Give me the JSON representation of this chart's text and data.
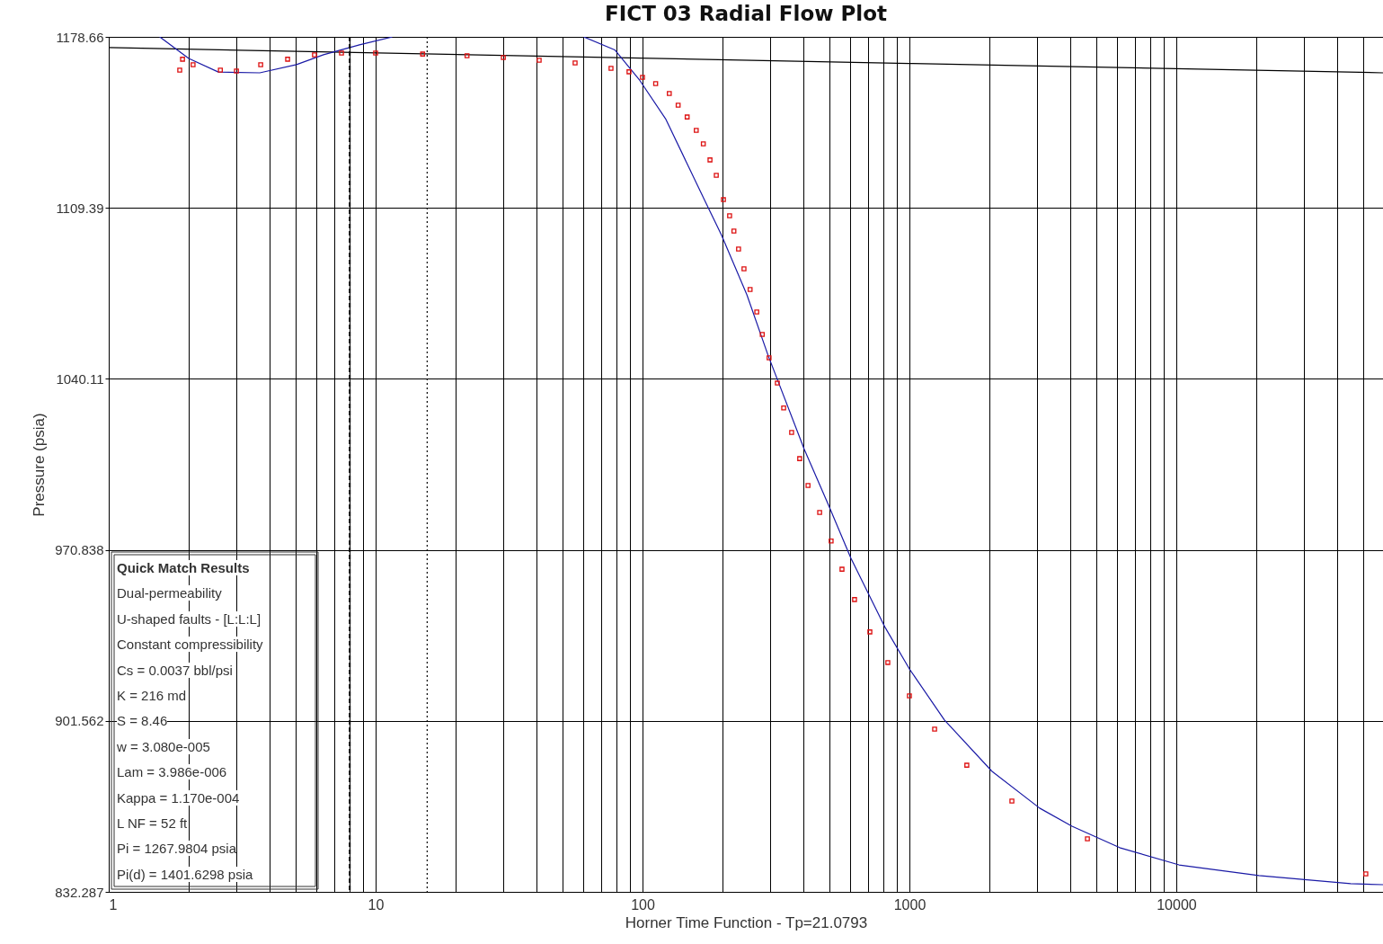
{
  "chart_data": {
    "type": "line",
    "title": "FICT 03   Radial Flow Plot",
    "xlabel": "Horner Time Function - Tp=21.0793",
    "ylabel": "Pressure (psia)",
    "log": "x",
    "grid": true,
    "xlim": [
      1,
      59500
    ],
    "ylim": [
      832.287,
      1178.66
    ],
    "xticks": [
      1,
      {
        "value": 2,
        "label": null
      },
      {
        "value": 3,
        "label": null
      },
      {
        "value": 4,
        "label": null
      },
      {
        "value": 5,
        "label": null
      },
      {
        "value": 6,
        "label": null
      },
      {
        "value": 7,
        "label": null
      },
      {
        "value": 8,
        "label": null
      },
      {
        "value": 9,
        "label": null
      },
      10,
      {
        "value": 20,
        "label": null
      },
      {
        "value": 30,
        "label": null
      },
      {
        "value": 40,
        "label": null
      },
      {
        "value": 50,
        "label": null
      },
      {
        "value": 60,
        "label": null
      },
      {
        "value": 70,
        "label": null
      },
      {
        "value": 80,
        "label": null
      },
      {
        "value": 90,
        "label": null
      },
      100,
      {
        "value": 200,
        "label": null
      },
      {
        "value": 300,
        "label": null
      },
      {
        "value": 400,
        "label": null
      },
      {
        "value": 500,
        "label": null
      },
      {
        "value": 600,
        "label": null
      },
      {
        "value": 700,
        "label": null
      },
      {
        "value": 800,
        "label": null
      },
      {
        "value": 900,
        "label": null
      },
      1000,
      {
        "value": 2000,
        "label": null
      },
      {
        "value": 3000,
        "label": null
      },
      {
        "value": 4000,
        "label": null
      },
      {
        "value": 5000,
        "label": null
      },
      {
        "value": 6000,
        "label": null
      },
      {
        "value": 7000,
        "label": null
      },
      {
        "value": 8000,
        "label": null
      },
      {
        "value": 9000,
        "label": null
      },
      10000,
      {
        "value": 20000,
        "label": null
      },
      {
        "value": 30000,
        "label": null
      },
      {
        "value": 40000,
        "label": null
      },
      {
        "value": 50000,
        "label": null
      }
    ],
    "yticks": [
      832.287,
      901.562,
      970.838,
      1040.11,
      1109.39,
      1178.66
    ],
    "ref_lines": [
      {
        "axis": "x",
        "value": 8,
        "label": null,
        "color": "#000000",
        "line_style": "dashed"
      },
      {
        "axis": "x",
        "value": 15.6,
        "label": null,
        "color": "#000000",
        "line_style": "dotted"
      }
    ],
    "series": [
      {
        "color": "#000000",
        "line_style": "solid",
        "x": [
          1,
          1000,
          59500
        ],
        "values": [
          1174.3,
          1167.9,
          1164.1
        ]
      },
      {
        "color": "#1a1aa6",
        "line_style": "solid",
        "x": [
          1.556,
          1.994,
          2.575,
          3.68,
          5.05,
          6.38,
          8.7,
          11.5
        ],
        "values": [
          1178.6,
          1169.9,
          1164.4,
          1164.1,
          1167.4,
          1171.4,
          1175.4,
          1178.6
        ]
      },
      {
        "color": "#1a1aa6",
        "line_style": "solid",
        "x": [
          60.4,
          78.7,
          97.7,
          122,
          173,
          198,
          246,
          296,
          404,
          498,
          604,
          811,
          1000,
          1353,
          2040,
          3076,
          4066,
          6133,
          10240,
          20400,
          45000,
          59500
        ],
        "values": [
          1178.6,
          1173.4,
          1161.0,
          1145.5,
          1111.3,
          1098.2,
          1074.2,
          1049.4,
          1011.5,
          988.9,
          967.4,
          939.4,
          922.6,
          901.9,
          881.1,
          866.2,
          858.9,
          850.2,
          843.2,
          838.9,
          835.6,
          835.2
        ]
      },
      {
        "type": "scatter",
        "color": "#dd1111",
        "marker": "square",
        "x": [
          1.845,
          1.89,
          2.07,
          2.62,
          3.01,
          3.71,
          4.68,
          5.9,
          7.45,
          10,
          15,
          22,
          30.1,
          41,
          55.9,
          76.2,
          89,
          100,
          112,
          126,
          136,
          147,
          159,
          169,
          179,
          189,
          201,
          212,
          220,
          229,
          240,
          253,
          268,
          281,
          298,
          320,
          338,
          362,
          388,
          417,
          461,
          509,
          559,
          623,
          711,
          830,
          1000,
          1243,
          1641,
          2421,
          4645,
          51300
        ],
        "values": [
          1165.2,
          1169.6,
          1167.4,
          1165.2,
          1164.8,
          1167.4,
          1169.6,
          1171.4,
          1172.1,
          1172.1,
          1171.7,
          1171.0,
          1170.3,
          1169.2,
          1168.1,
          1165.9,
          1164.5,
          1162.3,
          1159.7,
          1155.7,
          1151.0,
          1146.2,
          1140.8,
          1135.3,
          1128.8,
          1122.6,
          1112.7,
          1106.2,
          1100.0,
          1092.7,
          1084.7,
          1076.3,
          1067.2,
          1058.1,
          1048.6,
          1038.4,
          1028.3,
          1018.4,
          1007.8,
          996.9,
          986.0,
          974.4,
          963.0,
          950.7,
          937.6,
          925.2,
          911.7,
          898.2,
          883.6,
          869.1,
          853.8,
          839.6
        ]
      }
    ],
    "annotations": [
      "Quick Match Results",
      "Dual-permeability",
      "U-shaped faults - [L:L:L]",
      "Constant compressibility",
      "Cs = 0.0037 bbl/psi",
      "K = 216 md",
      "S = 8.46",
      "w = 3.080e-005",
      "Lam = 3.986e-006",
      "Kappa = 1.170e-004",
      "L NF = 52 ft",
      "Pi = 1267.9804 psia",
      "Pi(d) = 1401.6298 psia"
    ]
  }
}
